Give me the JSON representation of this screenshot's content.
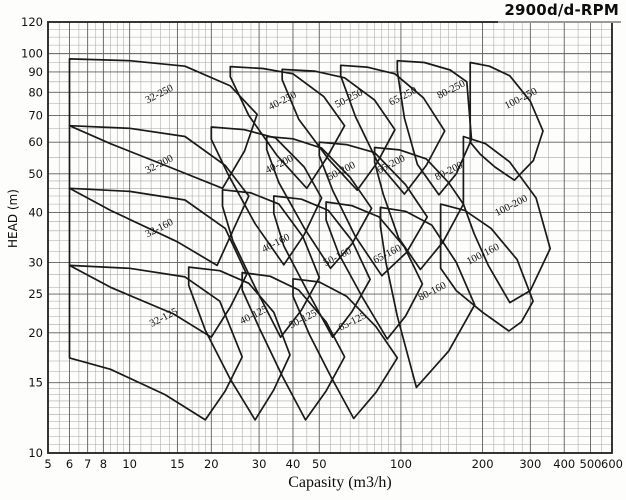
{
  "title": "2900d/d-RPM",
  "colors": {
    "background": "#fdfdfc",
    "envelope_line": "#1a1a1a",
    "grid_minor": "#a8a8a8",
    "grid_major": "#5e5e5e",
    "frame": "#1f1f1f",
    "text": "#111111"
  },
  "chart_data": {
    "type": "area",
    "description": "Pump selection chart: operating envelopes of centrifugal pump models at 2900 RPM on log-log axes",
    "title": "2900d/d-RPM",
    "xlabel": "Capasity (m3/h)",
    "ylabel": "HEAD (m)",
    "x_scale": "log",
    "y_scale": "log",
    "xlim": [
      5,
      600
    ],
    "ylim": [
      10,
      120
    ],
    "grid": true,
    "legend": "none",
    "label_rotation_deg": -27,
    "x_ticks": [
      5,
      6,
      7,
      8,
      10,
      15,
      20,
      30,
      40,
      50,
      100,
      200,
      300,
      400,
      500,
      600
    ],
    "y_ticks": [
      10,
      15,
      20,
      25,
      30,
      40,
      50,
      60,
      70,
      80,
      90,
      100,
      120
    ],
    "x_grid": [
      5,
      5.5,
      6,
      6.5,
      7,
      7.5,
      8,
      8.5,
      9,
      9.5,
      10,
      11,
      12,
      13,
      14,
      15,
      16,
      17,
      18,
      19,
      20,
      22,
      24,
      26,
      28,
      30,
      32,
      35,
      40,
      45,
      50,
      55,
      60,
      65,
      70,
      75,
      80,
      85,
      90,
      95,
      100,
      110,
      120,
      130,
      140,
      150,
      160,
      180,
      200,
      220,
      240,
      260,
      280,
      300,
      350,
      400,
      450,
      500,
      550,
      600
    ],
    "y_grid": [
      10,
      10.5,
      11,
      11.5,
      12,
      12.5,
      13,
      13.5,
      14,
      14.5,
      15,
      16,
      17,
      18,
      19,
      20,
      21,
      22,
      23,
      24,
      25,
      26,
      28,
      30,
      32,
      34,
      36,
      38,
      40,
      42,
      44,
      46,
      48,
      50,
      55,
      60,
      65,
      70,
      75,
      80,
      85,
      90,
      95,
      100,
      105,
      110,
      115,
      120
    ],
    "series": [
      {
        "name": "32-125",
        "label_at": [
          13.5,
          21.5
        ],
        "points": [
          [
            6,
            17.3
          ],
          [
            6,
            29.5
          ],
          [
            10,
            29
          ],
          [
            16,
            27.6
          ],
          [
            21.5,
            24
          ],
          [
            26,
            17.4
          ],
          [
            22.5,
            14.3
          ],
          [
            19,
            12.1
          ],
          [
            13.5,
            14
          ],
          [
            8.5,
            16.2
          ]
        ]
      },
      {
        "name": "40-125",
        "label_at": [
          29,
          21.8
        ],
        "points": [
          [
            16.5,
            26.3
          ],
          [
            16.5,
            29.2
          ],
          [
            21.5,
            28.6
          ],
          [
            27.5,
            26.6
          ],
          [
            34,
            22.5
          ],
          [
            39,
            17.6
          ],
          [
            34,
            14.4
          ],
          [
            29,
            12.1
          ],
          [
            23.5,
            15.3
          ],
          [
            19,
            20.3
          ]
        ]
      },
      {
        "name": "50-125",
        "label_at": [
          44,
          21.3
        ],
        "points": [
          [
            26,
            25.6
          ],
          [
            26,
            28.3
          ],
          [
            33,
            27.7
          ],
          [
            42,
            25.6
          ],
          [
            53,
            21.3
          ],
          [
            62,
            17.4
          ],
          [
            53,
            14.3
          ],
          [
            44.5,
            12.1
          ],
          [
            36.5,
            15.6
          ],
          [
            30,
            20.6
          ]
        ]
      },
      {
        "name": "65-125",
        "label_at": [
          67,
          21
        ],
        "points": [
          [
            40,
            24.7
          ],
          [
            40,
            27.3
          ],
          [
            50,
            26.8
          ],
          [
            63,
            24.7
          ],
          [
            81,
            20.7
          ],
          [
            97,
            17.3
          ],
          [
            81,
            14.2
          ],
          [
            67,
            12.2
          ],
          [
            55,
            15.6
          ],
          [
            46,
            19.8
          ]
        ]
      },
      {
        "name": "32-160",
        "label_at": [
          13,
          36
        ],
        "points": [
          [
            6,
            29.5
          ],
          [
            6,
            46
          ],
          [
            10,
            45.2
          ],
          [
            16,
            43
          ],
          [
            22.5,
            36.5
          ],
          [
            27,
            28
          ],
          [
            23.5,
            23.2
          ],
          [
            20,
            19.5
          ],
          [
            14.5,
            22.3
          ],
          [
            8.5,
            26
          ]
        ]
      },
      {
        "name": "40-160",
        "label_at": [
          35,
          33
        ],
        "points": [
          [
            22,
            41.5
          ],
          [
            22,
            45.6
          ],
          [
            28,
            44.8
          ],
          [
            35.5,
            42
          ],
          [
            43.5,
            34.8
          ],
          [
            50,
            27.5
          ],
          [
            43,
            22.8
          ],
          [
            36,
            19.5
          ],
          [
            29,
            26
          ],
          [
            24,
            34
          ]
        ]
      },
      {
        "name": "50-160",
        "label_at": [
          59,
          30.5
        ],
        "points": [
          [
            34,
            39.8
          ],
          [
            34,
            44
          ],
          [
            43,
            43.2
          ],
          [
            54,
            40.5
          ],
          [
            66,
            34
          ],
          [
            77,
            27.2
          ],
          [
            66,
            22.6
          ],
          [
            56,
            19.5
          ],
          [
            45,
            25.6
          ],
          [
            37,
            33
          ]
        ]
      },
      {
        "name": "65-160",
        "label_at": [
          90,
          31
        ],
        "points": [
          [
            53,
            38.3
          ],
          [
            53,
            42.5
          ],
          [
            66,
            41.6
          ],
          [
            83,
            39
          ],
          [
            103,
            32.8
          ],
          [
            120,
            26.5
          ],
          [
            104,
            22
          ],
          [
            89,
            19.3
          ],
          [
            72,
            24.6
          ],
          [
            59,
            31.5
          ]
        ]
      },
      {
        "name": "80-160",
        "label_at": [
          132,
          25
        ],
        "points": [
          [
            84,
            37
          ],
          [
            84,
            41.2
          ],
          [
            104,
            40.3
          ],
          [
            130,
            37.2
          ],
          [
            160,
            30
          ],
          [
            187,
            23.5
          ],
          [
            150,
            18
          ],
          [
            114,
            14.6
          ],
          [
            97,
            22
          ],
          [
            88,
            30
          ]
        ]
      },
      {
        "name": "100-160",
        "label_at": [
          203,
          31
        ],
        "points": [
          [
            140,
            29
          ],
          [
            140,
            42
          ],
          [
            172,
            40.5
          ],
          [
            215,
            36.5
          ],
          [
            268,
            30.5
          ],
          [
            307,
            24
          ],
          [
            278,
            21.3
          ],
          [
            250,
            20.2
          ],
          [
            200,
            22.5
          ],
          [
            160,
            25.5
          ]
        ]
      },
      {
        "name": "32-200",
        "label_at": [
          13,
          52
        ],
        "points": [
          [
            6,
            46
          ],
          [
            6,
            66
          ],
          [
            10,
            65
          ],
          [
            16,
            62
          ],
          [
            22.5,
            52.5
          ],
          [
            27.5,
            44
          ],
          [
            24,
            36
          ],
          [
            21,
            29.5
          ],
          [
            15,
            33.8
          ],
          [
            8.5,
            40.5
          ]
        ]
      },
      {
        "name": "40-200",
        "label_at": [
          36,
          52
        ],
        "points": [
          [
            20,
            61
          ],
          [
            20,
            65.5
          ],
          [
            26.5,
            64.5
          ],
          [
            34.5,
            61.5
          ],
          [
            44,
            52
          ],
          [
            51,
            43.5
          ],
          [
            44,
            35.2
          ],
          [
            37,
            29.6
          ],
          [
            29,
            37.5
          ],
          [
            23,
            50
          ]
        ]
      },
      {
        "name": "50-200",
        "label_at": [
          61,
          50
        ],
        "points": [
          [
            32,
            57.5
          ],
          [
            32,
            62
          ],
          [
            40,
            61.2
          ],
          [
            51,
            58
          ],
          [
            65,
            49
          ],
          [
            78,
            41
          ],
          [
            66,
            33.4
          ],
          [
            55,
            29
          ],
          [
            44,
            36.6
          ],
          [
            35.5,
            47.5
          ]
        ]
      },
      {
        "name": "65-200",
        "label_at": [
          93,
          52
        ],
        "points": [
          [
            50,
            55.5
          ],
          [
            50,
            60
          ],
          [
            63,
            59.2
          ],
          [
            80,
            56.5
          ],
          [
            104,
            47
          ],
          [
            125,
            39
          ],
          [
            105,
            31.8
          ],
          [
            85,
            27.8
          ],
          [
            68,
            34.8
          ],
          [
            56,
            45.5
          ]
        ]
      },
      {
        "name": "80-200",
        "label_at": [
          152,
          50
        ],
        "points": [
          [
            80,
            53.5
          ],
          [
            80,
            58.2
          ],
          [
            99,
            57.4
          ],
          [
            124,
            54.5
          ],
          [
            150,
            47.5
          ],
          [
            170,
            42
          ],
          [
            143,
            33.8
          ],
          [
            118,
            28.8
          ],
          [
            98,
            34.6
          ],
          [
            86,
            44.5
          ]
        ]
      },
      {
        "name": "100-200",
        "label_at": [
          258,
          41
        ],
        "points": [
          [
            170,
            42
          ],
          [
            170,
            62
          ],
          [
            205,
            59.5
          ],
          [
            252,
            53.5
          ],
          [
            315,
            43.5
          ],
          [
            355,
            32.5
          ],
          [
            300,
            25.5
          ],
          [
            252,
            23.8
          ],
          [
            210,
            29.5
          ],
          [
            186,
            35.5
          ]
        ]
      },
      {
        "name": "32-250",
        "label_at": [
          13,
          78
        ],
        "points": [
          [
            6,
            66
          ],
          [
            6,
            97
          ],
          [
            10,
            96
          ],
          [
            16,
            93
          ],
          [
            23.5,
            83
          ],
          [
            29.5,
            70.5
          ],
          [
            26.5,
            57
          ],
          [
            22,
            46
          ],
          [
            14,
            52
          ],
          [
            8.5,
            59.5
          ]
        ]
      },
      {
        "name": "40-250",
        "label_at": [
          37,
          75
        ],
        "points": [
          [
            23.5,
            87.5
          ],
          [
            23.5,
            92.8
          ],
          [
            31,
            91.8
          ],
          [
            40,
            89
          ],
          [
            52,
            78
          ],
          [
            62,
            66
          ],
          [
            53,
            54.5
          ],
          [
            45,
            46
          ],
          [
            35,
            55.5
          ],
          [
            27.5,
            70
          ]
        ]
      },
      {
        "name": "50-250",
        "label_at": [
          65,
          76
        ],
        "points": [
          [
            36.5,
            86
          ],
          [
            36.5,
            91.3
          ],
          [
            48,
            90.4
          ],
          [
            62,
            87
          ],
          [
            80,
            76.5
          ],
          [
            95,
            64.5
          ],
          [
            82,
            53.5
          ],
          [
            69,
            45.5
          ],
          [
            54,
            54.5
          ],
          [
            42,
            68.5
          ]
        ]
      },
      {
        "name": "65-250",
        "label_at": [
          103,
          77
        ],
        "points": [
          [
            60,
            88
          ],
          [
            60,
            93.5
          ],
          [
            75,
            92.5
          ],
          [
            95,
            89
          ],
          [
            121,
            77.5
          ],
          [
            145,
            64
          ],
          [
            124,
            52.5
          ],
          [
            103,
            44.5
          ],
          [
            82,
            53.5
          ],
          [
            68,
            69.5
          ]
        ]
      },
      {
        "name": "80-250",
        "label_at": [
          155,
          80
        ],
        "points": [
          [
            97,
            90.5
          ],
          [
            97,
            96
          ],
          [
            122,
            95
          ],
          [
            152,
            91
          ],
          [
            175,
            85
          ],
          [
            182,
            61
          ],
          [
            160,
            50
          ],
          [
            138,
            44.3
          ],
          [
            115,
            52.8
          ],
          [
            103,
            69
          ]
        ]
      },
      {
        "name": "100-250",
        "label_at": [
          280,
          76
        ],
        "points": [
          [
            180,
            60
          ],
          [
            180,
            95
          ],
          [
            212,
            93
          ],
          [
            252,
            88
          ],
          [
            300,
            76
          ],
          [
            334,
            64
          ],
          [
            308,
            54
          ],
          [
            262,
            48.2
          ],
          [
            222,
            52
          ],
          [
            196,
            56
          ]
        ]
      }
    ]
  }
}
